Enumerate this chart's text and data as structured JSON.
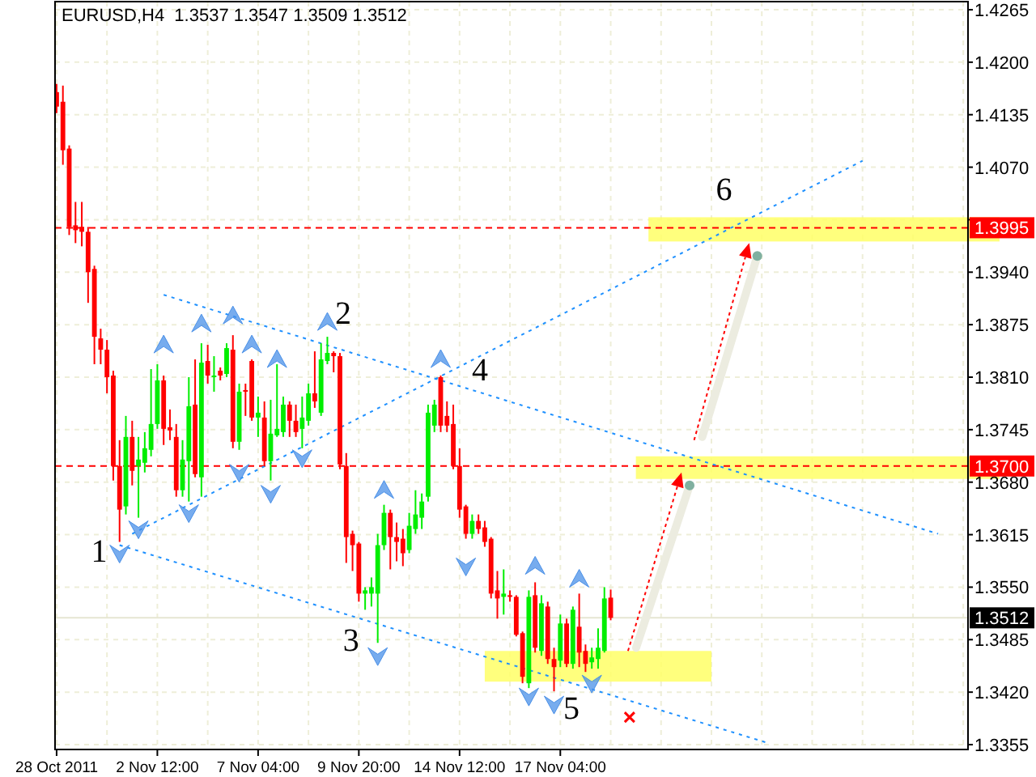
{
  "chart_data": {
    "type": "candlestick",
    "title": "EURUSD,H4  1.3537 1.3547 1.3509 1.3512",
    "categories": [
      "28 Oct 2011",
      null,
      null,
      null,
      null,
      null,
      null,
      null,
      null,
      null,
      null,
      null,
      null,
      null,
      null,
      null,
      "2 Nov 12:00",
      null,
      null,
      null,
      null,
      null,
      null,
      null,
      null,
      null,
      null,
      null,
      null,
      null,
      null,
      null,
      "7 Nov 04:00",
      null,
      null,
      null,
      null,
      null,
      null,
      null,
      null,
      null,
      null,
      null,
      null,
      null,
      null,
      null,
      "9 Nov 20:00",
      null,
      null,
      null,
      null,
      null,
      null,
      null,
      null,
      null,
      null,
      null,
      null,
      null,
      null,
      null,
      "14 Nov 12:00",
      null,
      null,
      null,
      null,
      null,
      null,
      null,
      null,
      null,
      null,
      null,
      null,
      null,
      null,
      null,
      "17 Nov 04:00",
      null,
      null,
      null,
      null,
      null,
      null,
      null,
      null,
      null,
      null,
      null,
      null,
      null,
      null,
      null,
      null,
      null,
      null,
      null,
      null,
      null,
      null,
      null,
      null,
      null,
      null,
      null,
      null,
      null,
      null,
      null,
      null,
      null,
      null,
      null,
      null,
      null,
      null,
      null,
      null,
      null,
      null,
      null,
      null,
      null,
      null,
      null,
      null,
      null,
      null,
      null,
      null,
      null,
      null,
      null,
      null,
      null,
      null,
      null,
      null,
      null,
      null,
      null,
      null
    ],
    "ohlc": [
      [
        1.4163,
        1.4173,
        1.4137,
        1.4145
      ],
      [
        1.4151,
        1.4171,
        1.4073,
        1.4091
      ],
      [
        1.4093,
        1.4097,
        1.3986,
        1.3996
      ],
      [
        1.3998,
        1.4027,
        1.3976,
        1.3992
      ],
      [
        1.3996,
        1.4027,
        1.3972,
        1.399
      ],
      [
        1.399,
        1.3996,
        1.3902,
        1.394
      ],
      [
        1.3944,
        1.3948,
        1.3826,
        1.386
      ],
      [
        1.3858,
        1.387,
        1.3826,
        1.3844
      ],
      [
        1.3844,
        1.3856,
        1.379,
        1.381
      ],
      [
        1.3812,
        1.3818,
        1.3682,
        1.37
      ],
      [
        1.37,
        1.3732,
        1.3606,
        1.3646
      ],
      [
        1.365,
        1.3762,
        1.364,
        1.3736
      ],
      [
        1.3736,
        1.3756,
        1.3676,
        1.3694
      ],
      [
        1.37,
        1.3736,
        1.3636,
        1.3708
      ],
      [
        1.3704,
        1.3742,
        1.3692,
        1.3722
      ],
      [
        1.372,
        1.382,
        1.3712,
        1.3752
      ],
      [
        1.3752,
        1.3826,
        1.3746,
        1.3806
      ],
      [
        1.3806,
        1.3812,
        1.3726,
        1.3746
      ],
      [
        1.3748,
        1.377,
        1.3732,
        1.3744
      ],
      [
        1.3736,
        1.3752,
        1.3662,
        1.367
      ],
      [
        1.367,
        1.3732,
        1.3662,
        1.3708
      ],
      [
        1.3706,
        1.381,
        1.3656,
        1.3774
      ],
      [
        1.3776,
        1.3832,
        1.3686,
        1.369
      ],
      [
        1.3686,
        1.3852,
        1.3662,
        1.3828
      ],
      [
        1.383,
        1.385,
        1.3802,
        1.3812
      ],
      [
        1.381,
        1.3836,
        1.3792,
        1.3812
      ],
      [
        1.3818,
        1.3822,
        1.3806,
        1.3812
      ],
      [
        1.3814,
        1.3852,
        1.381,
        1.3846
      ],
      [
        1.3844,
        1.3862,
        1.3722,
        1.373
      ],
      [
        1.373,
        1.3802,
        1.372,
        1.3792
      ],
      [
        1.3794,
        1.3802,
        1.3762,
        1.3792
      ],
      [
        1.383,
        1.3832,
        1.3756,
        1.376
      ],
      [
        1.376,
        1.3786,
        1.3736,
        1.3766
      ],
      [
        1.376,
        1.378,
        1.37,
        1.3706
      ],
      [
        1.3706,
        1.3782,
        1.3682,
        1.374
      ],
      [
        1.3738,
        1.3826,
        1.3736,
        1.3746
      ],
      [
        1.3742,
        1.3786,
        1.3736,
        1.3776
      ],
      [
        1.3776,
        1.378,
        1.3736,
        1.3756
      ],
      [
        1.3756,
        1.3776,
        1.3736,
        1.3742
      ],
      [
        1.3746,
        1.3786,
        1.3722,
        1.376
      ],
      [
        1.3756,
        1.3802,
        1.375,
        1.379
      ],
      [
        1.379,
        1.3842,
        1.3772,
        1.378
      ],
      [
        1.3766,
        1.3852,
        1.3762,
        1.3832
      ],
      [
        1.383,
        1.386,
        1.3826,
        1.384
      ],
      [
        1.384,
        1.3842,
        1.3816,
        1.3836
      ],
      [
        1.3836,
        1.384,
        1.3696,
        1.3702
      ],
      [
        1.37,
        1.3716,
        1.358,
        1.3612
      ],
      [
        1.3616,
        1.362,
        1.357,
        1.3602
      ],
      [
        1.3604,
        1.3606,
        1.3532,
        1.3542
      ],
      [
        1.3542,
        1.355,
        1.3522,
        1.3546
      ],
      [
        1.3542,
        1.3562,
        1.3526,
        1.355
      ],
      [
        1.3542,
        1.3616,
        1.3481,
        1.3602
      ],
      [
        1.3602,
        1.3652,
        1.3596,
        1.3642
      ],
      [
        1.3642,
        1.3646,
        1.3572,
        1.3612
      ],
      [
        1.3612,
        1.363,
        1.3582,
        1.3606
      ],
      [
        1.361,
        1.3622,
        1.3576,
        1.3592
      ],
      [
        1.3596,
        1.3642,
        1.3592,
        1.3626
      ],
      [
        1.3622,
        1.367,
        1.3616,
        1.364
      ],
      [
        1.3636,
        1.3666,
        1.3622,
        1.3656
      ],
      [
        1.3662,
        1.3776,
        1.3656,
        1.3766
      ],
      [
        1.375,
        1.3782,
        1.3742,
        1.3776
      ],
      [
        1.381,
        1.3812,
        1.3742,
        1.375
      ],
      [
        1.3762,
        1.378,
        1.3742,
        1.375
      ],
      [
        1.3752,
        1.3776,
        1.3696,
        1.37
      ],
      [
        1.37,
        1.3722,
        1.3636,
        1.3646
      ],
      [
        1.365,
        1.3652,
        1.361,
        1.3616
      ],
      [
        1.3616,
        1.364,
        1.361,
        1.3632
      ],
      [
        1.3632,
        1.364,
        1.3616,
        1.3622
      ],
      [
        1.3624,
        1.3632,
        1.36,
        1.3606
      ],
      [
        1.361,
        1.3612,
        1.3536,
        1.3542
      ],
      [
        1.3546,
        1.357,
        1.3511,
        1.3536
      ],
      [
        1.3538,
        1.3572,
        1.3516,
        1.3542
      ],
      [
        1.354,
        1.3546,
        1.3532,
        1.3538
      ],
      [
        1.3538,
        1.354,
        1.3489,
        1.3491
      ],
      [
        1.3493,
        1.3495,
        1.3431,
        1.3439
      ],
      [
        1.3431,
        1.3546,
        1.3425,
        1.3538
      ],
      [
        1.354,
        1.3556,
        1.3469,
        1.3475
      ],
      [
        1.3471,
        1.354,
        1.3465,
        1.353
      ],
      [
        1.3526,
        1.3532,
        1.3455,
        1.3461
      ],
      [
        1.3461,
        1.3475,
        1.3421,
        1.3451
      ],
      [
        1.3459,
        1.3516,
        1.3451,
        1.3505
      ],
      [
        1.3505,
        1.3511,
        1.3451,
        1.3455
      ],
      [
        1.3455,
        1.3526,
        1.3449,
        1.3522
      ],
      [
        1.3501,
        1.3542,
        1.3451,
        1.3469
      ],
      [
        1.3471,
        1.3479,
        1.3445,
        1.3455
      ],
      [
        1.3457,
        1.3475,
        1.3449,
        1.3463
      ],
      [
        1.3461,
        1.3499,
        1.3449,
        1.3475
      ],
      [
        1.3471,
        1.355,
        1.3469,
        1.3536
      ],
      [
        1.3537,
        1.3547,
        1.3509,
        1.3512
      ],
      null,
      null,
      null,
      null,
      null,
      null,
      null,
      null,
      null,
      null,
      null,
      null,
      null,
      null,
      null,
      null,
      null,
      null,
      null,
      null,
      null,
      null,
      null,
      null,
      null,
      null,
      null,
      null,
      null,
      null,
      null,
      null,
      null,
      null,
      null,
      null,
      null,
      null,
      null,
      null,
      null,
      null,
      null,
      null,
      null,
      null,
      null,
      null,
      null,
      null,
      null,
      null,
      null,
      null,
      null,
      null
    ],
    "colors": [
      "#ff0000",
      "#ff0000",
      "#ff0000",
      "#ff0000",
      "#ff0000",
      "#ff0000",
      "#ff0000",
      "#ff0000",
      "#ff0000",
      "#ff0000",
      "#ff0000",
      "#00ee00",
      "#ff0000",
      "#00ee00",
      "#00ee00",
      "#00ee00",
      "#00ee00",
      "#ff0000",
      "#ff0000",
      "#ff0000",
      "#00ee00",
      "#00ee00",
      "#ff0000",
      "#00ee00",
      "#ff0000",
      "#00ee00",
      "#ff0000",
      "#00ee00",
      "#ff0000",
      "#00ee00",
      "#ff0000",
      "#ff0000",
      "#00ee00",
      "#ff0000",
      "#00ee00",
      "#00ee00",
      "#00ee00",
      "#ff0000",
      "#ff0000",
      "#00ee00",
      "#00ee00",
      "#ff0000",
      "#00ee00",
      "#00ee00",
      "#ff0000",
      "#ff0000",
      "#ff0000",
      "#ff0000",
      "#ff0000",
      "#00ee00",
      "#00ee00",
      "#00ee00",
      "#00ee00",
      "#ff0000",
      "#ff0000",
      "#ff0000",
      "#00ee00",
      "#00ee00",
      "#00ee00",
      "#00ee00",
      "#00ee00",
      "#ff0000",
      "#ff0000",
      "#ff0000",
      "#ff0000",
      "#ff0000",
      "#00ee00",
      "#ff0000",
      "#ff0000",
      "#ff0000",
      "#ff0000",
      "#00ee00",
      "#ff0000",
      "#ff0000",
      "#ff0000",
      "#00ee00",
      "#ff0000",
      "#00ee00",
      "#ff0000",
      "#ff0000",
      "#00ee00",
      "#ff0000",
      "#00ee00",
      "#ff0000",
      "#ff0000",
      "#00ee00",
      "#00ee00",
      "#00ee00",
      "#ff0000",
      null,
      null,
      null,
      null,
      null,
      null,
      null,
      null,
      null,
      null,
      null,
      null,
      null,
      null,
      null,
      null,
      null,
      null,
      null,
      null,
      null,
      null,
      null,
      null,
      null,
      null,
      null,
      null,
      null,
      null,
      null,
      null,
      null,
      null,
      null,
      null,
      null,
      null,
      null,
      null,
      null,
      null,
      null,
      null,
      null,
      null,
      null,
      null,
      null,
      null,
      null,
      null,
      null,
      null,
      null,
      null
    ],
    "series": [
      {
        "type": "line",
        "color": "#1e90ff",
        "line_style": "dotted",
        "values": [
          null,
          null,
          null,
          null,
          null,
          null,
          null,
          null,
          null,
          null,
          null,
          null,
          null,
          null,
          null,
          null,
          null,
          1.3912,
          null,
          null,
          null,
          null,
          null,
          null,
          null,
          null,
          null,
          null,
          null,
          null,
          null,
          null,
          null,
          null,
          null,
          null,
          null,
          null,
          null,
          null,
          null,
          null,
          null,
          null,
          null,
          null,
          null,
          null,
          null,
          null,
          null,
          null,
          null,
          null,
          null,
          null,
          null,
          null,
          null,
          null,
          null,
          null,
          null,
          null,
          null,
          null,
          null,
          null,
          null,
          null,
          null,
          null,
          null,
          null,
          null,
          null,
          null,
          null,
          null,
          null,
          null,
          null,
          null,
          null,
          null,
          null,
          null,
          null,
          null,
          null,
          null,
          null,
          null,
          null,
          null,
          null,
          null,
          null,
          null,
          null,
          null,
          null,
          null,
          null,
          null,
          null,
          null,
          null,
          null,
          null,
          null,
          null,
          null,
          null,
          null,
          null,
          null,
          null,
          null,
          null,
          null,
          null,
          null,
          null,
          null,
          null,
          null,
          null,
          null,
          null,
          null,
          null,
          null,
          null,
          null,
          null,
          null,
          null,
          null,
          null,
          1.3616,
          null,
          null,
          null,
          null
        ]
      },
      {
        "type": "line",
        "color": "#1e90ff",
        "line_style": "dotted",
        "values": [
          null,
          null,
          null,
          null,
          null,
          null,
          null,
          null,
          null,
          null,
          1.3602,
          null,
          null,
          null,
          null,
          null,
          null,
          null,
          null,
          null,
          null,
          null,
          null,
          null,
          null,
          null,
          null,
          null,
          null,
          null,
          null,
          null,
          null,
          null,
          null,
          null,
          null,
          null,
          null,
          null,
          null,
          null,
          null,
          null,
          null,
          null,
          null,
          null,
          null,
          null,
          null,
          null,
          null,
          null,
          null,
          null,
          null,
          null,
          null,
          null,
          null,
          null,
          null,
          null,
          null,
          null,
          null,
          null,
          null,
          null,
          null,
          null,
          null,
          null,
          null,
          null,
          null,
          null,
          null,
          null,
          null,
          null,
          null,
          null,
          null,
          null,
          null,
          null,
          null,
          null,
          null,
          null,
          null,
          null,
          null,
          null,
          null,
          null,
          null,
          null,
          null,
          null,
          null,
          null,
          null,
          null,
          null,
          null,
          null,
          null,
          null,
          null,
          null,
          1.3357,
          null,
          null,
          null,
          null,
          null,
          null,
          null,
          null,
          null,
          null,
          null,
          null,
          null,
          null,
          null,
          null,
          null,
          null,
          null,
          null,
          null,
          null,
          null,
          null,
          null,
          null,
          null,
          null,
          null,
          null,
          null
        ]
      },
      {
        "type": "line",
        "color": "#1e90ff",
        "line_style": "dotted",
        "values": [
          null,
          null,
          null,
          null,
          null,
          null,
          null,
          null,
          null,
          null,
          null,
          null,
          1.3616,
          null,
          null,
          null,
          null,
          null,
          null,
          null,
          null,
          null,
          null,
          null,
          null,
          null,
          null,
          null,
          null,
          null,
          null,
          null,
          null,
          null,
          null,
          null,
          null,
          null,
          null,
          null,
          null,
          null,
          null,
          null,
          null,
          null,
          null,
          null,
          null,
          null,
          null,
          null,
          null,
          null,
          null,
          null,
          null,
          null,
          null,
          null,
          null,
          null,
          null,
          null,
          null,
          null,
          null,
          null,
          null,
          null,
          null,
          null,
          null,
          null,
          null,
          null,
          null,
          null,
          null,
          null,
          null,
          null,
          null,
          null,
          null,
          null,
          null,
          null,
          null,
          null,
          null,
          null,
          null,
          null,
          null,
          null,
          null,
          null,
          null,
          null,
          null,
          null,
          null,
          null,
          null,
          null,
          null,
          null,
          null,
          null,
          null,
          null,
          null,
          null,
          null,
          null,
          null,
          null,
          null,
          null,
          null,
          null,
          null,
          null,
          null,
          null,
          null,
          null,
          1.4078,
          null,
          null,
          null,
          null,
          null,
          null,
          null,
          null,
          null,
          null,
          null,
          null,
          null,
          null,
          null,
          null
        ]
      },
      {
        "type": "scatter",
        "color": "#4a90e8",
        "marker": "diamond",
        "values": [
          null,
          null,
          null,
          null,
          null,
          null,
          null,
          null,
          null,
          null,
          null,
          null,
          null,
          null,
          null,
          null,
          null,
          1.385,
          null,
          null,
          null,
          null,
          null,
          1.3876,
          null,
          null,
          null,
          null,
          1.3886,
          null,
          null,
          1.385,
          null,
          null,
          null,
          1.3832,
          null,
          null,
          null,
          null,
          null,
          null,
          null,
          1.3878,
          null,
          null,
          null,
          null,
          null,
          null,
          null,
          null,
          1.367,
          null,
          null,
          null,
          null,
          null,
          null,
          null,
          null,
          1.3832,
          null,
          null,
          null,
          null,
          null,
          null,
          null,
          null,
          null,
          null,
          null,
          null,
          null,
          null,
          1.3576,
          null,
          null,
          null,
          null,
          null,
          null,
          1.356,
          null,
          null,
          null,
          null,
          null,
          null,
          null,
          null,
          null,
          null,
          null,
          null,
          null,
          null,
          null,
          null,
          null,
          null,
          null,
          null,
          null,
          null,
          null,
          null,
          null,
          null,
          null,
          null,
          null,
          null,
          null,
          null,
          null,
          null,
          null,
          null,
          null,
          null,
          null,
          null,
          null,
          null,
          null,
          null,
          null,
          null,
          null,
          null,
          null,
          null,
          null,
          null,
          null,
          null,
          null,
          null,
          null,
          null,
          null,
          null,
          null
        ]
      },
      {
        "type": "scatter",
        "color": "#4a90e8",
        "marker": "diamond",
        "values": [
          null,
          null,
          null,
          null,
          null,
          null,
          null,
          null,
          null,
          null,
          1.3592,
          null,
          null,
          1.3622,
          null,
          null,
          null,
          null,
          null,
          null,
          null,
          1.3642,
          null,
          null,
          null,
          null,
          null,
          null,
          null,
          1.3692,
          null,
          null,
          null,
          null,
          1.3666,
          null,
          null,
          null,
          null,
          1.371,
          null,
          null,
          null,
          null,
          null,
          null,
          null,
          null,
          null,
          null,
          null,
          1.3465,
          null,
          null,
          null,
          null,
          null,
          null,
          null,
          null,
          null,
          null,
          null,
          null,
          null,
          1.3576,
          null,
          null,
          null,
          null,
          null,
          null,
          null,
          null,
          null,
          1.3415,
          null,
          null,
          null,
          1.3405,
          null,
          null,
          null,
          null,
          null,
          1.3431,
          null,
          null,
          null,
          null,
          null,
          null,
          null,
          null,
          null,
          null,
          null,
          null,
          null,
          null,
          null,
          null,
          null,
          null,
          null,
          null,
          null,
          null,
          null,
          null,
          null,
          null,
          null,
          null,
          null,
          null,
          null,
          null,
          null,
          null,
          null,
          null,
          null,
          null,
          null,
          null,
          null,
          null,
          null,
          null,
          null,
          null,
          null,
          null,
          null,
          null,
          null,
          null,
          null,
          null,
          null,
          null,
          null,
          null,
          null
        ]
      }
    ],
    "ylim": [
      1.3349,
      1.4275
    ],
    "yticks": [
      1.3355,
      {
        "value": 1.342,
        "label": "1.3420"
      },
      1.3485,
      {
        "value": 1.355,
        "label": "1.3550"
      },
      1.3615,
      {
        "value": 1.368,
        "label": "1.3680"
      },
      1.3745,
      {
        "value": 1.381,
        "label": "1.3810"
      },
      1.3875,
      {
        "value": 1.394,
        "label": "1.3940"
      },
      {
        "value": 1.4005,
        "label": null
      },
      {
        "value": 1.407,
        "label": "1.4070"
      },
      1.4135,
      {
        "value": 1.42,
        "label": "1.4200"
      },
      1.4265
    ],
    "grid": true,
    "bands": [
      {
        "axis": "y",
        "from": 1.3978,
        "to": 1.4008,
        "color": "#ffff66"
      },
      {
        "axis": "y",
        "from": 1.3684,
        "to": 1.3712,
        "color": "#ffff66"
      },
      {
        "axis": "y",
        "from": 1.3433,
        "to": 1.3471,
        "color": "#ffff66"
      }
    ],
    "ref_lines": [
      {
        "axis": "y",
        "value": 1.3995,
        "label": "1.3995",
        "color": "#ff0000",
        "line_style": "dashed"
      },
      {
        "axis": "y",
        "value": 1.37,
        "label": "1.3700",
        "color": "#ff0000",
        "line_style": "dashed"
      },
      {
        "axis": "y",
        "value": 1.3512,
        "label": "1.3512",
        "color": "#e6e6d2",
        "line_style": "solid"
      }
    ],
    "annotations": [
      "1",
      "2",
      "3",
      "4",
      "5",
      "6"
    ]
  }
}
